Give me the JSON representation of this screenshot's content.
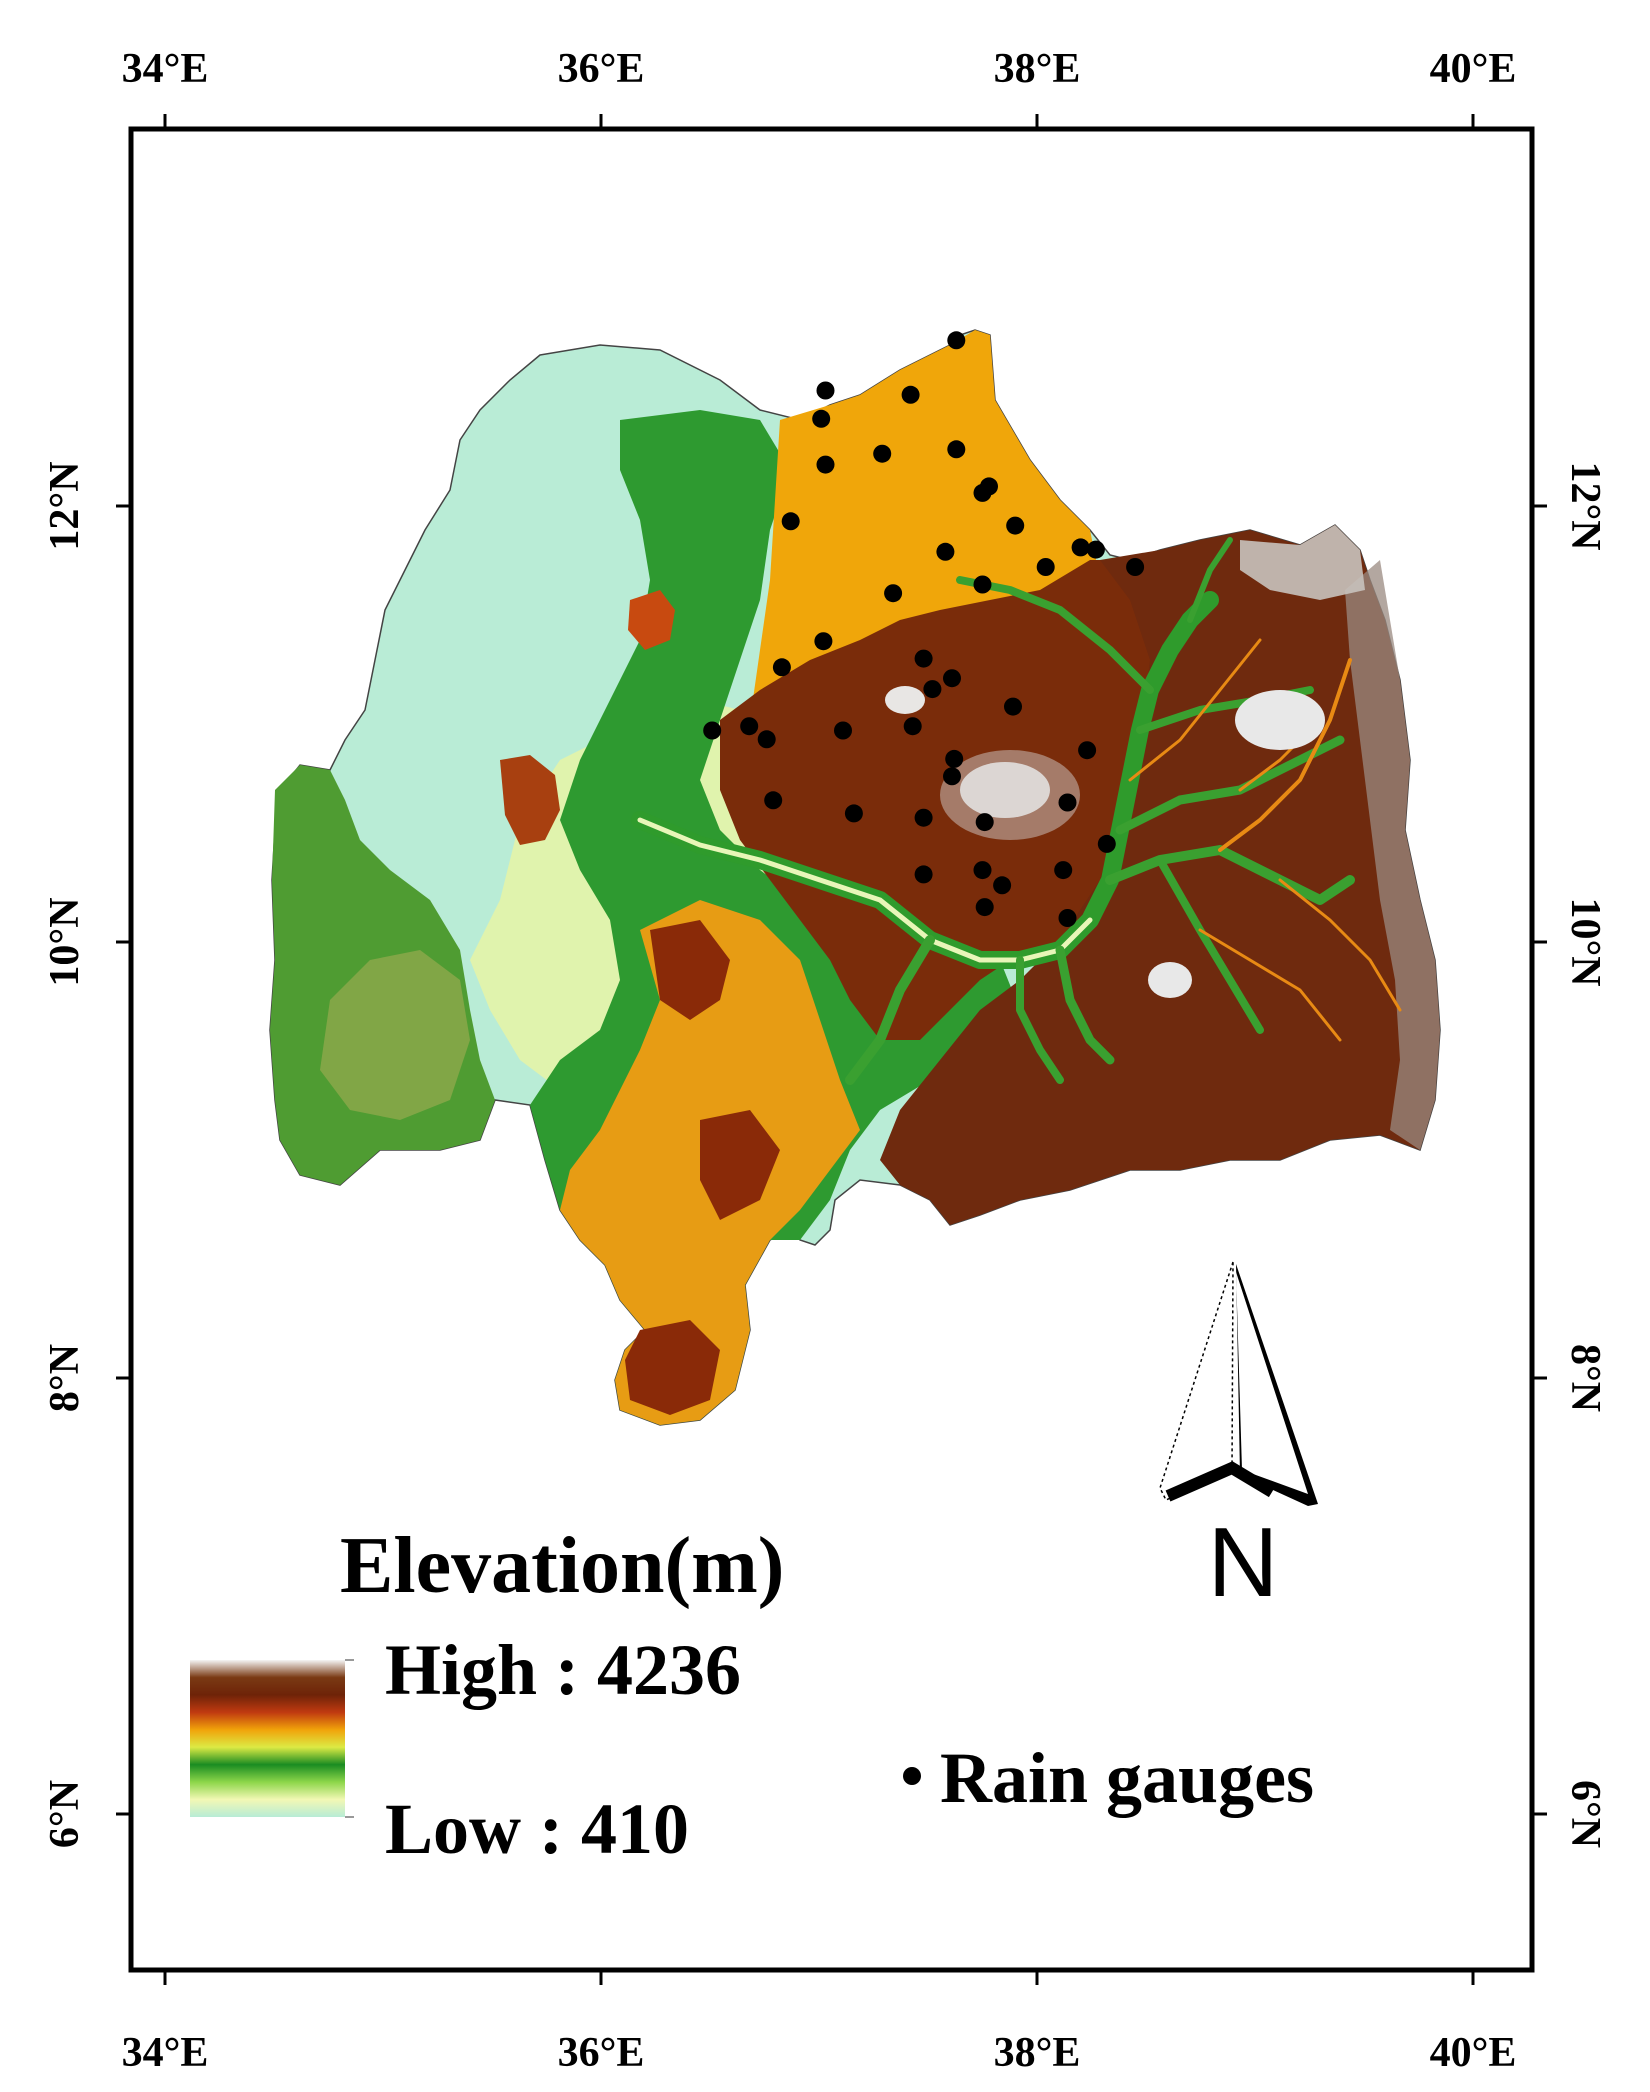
{
  "map": {
    "top_axis": [
      "34°E",
      "36°E",
      "38°E",
      "40°E"
    ],
    "bottom_axis": [
      "34°E",
      "36°E",
      "38°E",
      "40°E"
    ],
    "left_axis": [
      "12°N",
      "10°N",
      "8°N",
      "6°N"
    ],
    "right_axis": [
      "12°N",
      "10°N",
      "8°N",
      "6°N"
    ]
  },
  "legend": {
    "title": "Elevation(m)",
    "high_label": "High : 4236",
    "low_label": "Low : 410",
    "gauges_label": "Rain gauges",
    "elevation_ramp": [
      "#f4f4f4",
      "#7a3a14",
      "#6e2308",
      "#c03a10",
      "#f1a30a",
      "#dcea44",
      "#1a8c22",
      "#8dd64a",
      "#f2f8b4",
      "#b7ecd6"
    ]
  },
  "north_arrow": {
    "label": "N"
  },
  "colors": {
    "lowland_cyan": "#b7ecd6",
    "green": "#1f8d2a",
    "orange": "#f0a30a",
    "brown": "#6e2a0c",
    "summit_white": "#f1f1f1"
  },
  "rain_gauges": [
    {
      "lon": 37.63,
      "lat": 12.76
    },
    {
      "lon": 37.03,
      "lat": 12.53
    },
    {
      "lon": 37.42,
      "lat": 12.51
    },
    {
      "lon": 37.01,
      "lat": 12.4
    },
    {
      "lon": 37.29,
      "lat": 12.24
    },
    {
      "lon": 37.63,
      "lat": 12.26
    },
    {
      "lon": 37.03,
      "lat": 12.19
    },
    {
      "lon": 37.78,
      "lat": 12.09
    },
    {
      "lon": 37.75,
      "lat": 12.06
    },
    {
      "lon": 36.87,
      "lat": 11.93
    },
    {
      "lon": 37.9,
      "lat": 11.91
    },
    {
      "lon": 37.58,
      "lat": 11.79
    },
    {
      "lon": 38.2,
      "lat": 11.81
    },
    {
      "lon": 38.27,
      "lat": 11.8
    },
    {
      "lon": 38.04,
      "lat": 11.72
    },
    {
      "lon": 38.45,
      "lat": 11.72
    },
    {
      "lon": 37.75,
      "lat": 11.64
    },
    {
      "lon": 37.34,
      "lat": 11.6
    },
    {
      "lon": 37.02,
      "lat": 11.38
    },
    {
      "lon": 37.48,
      "lat": 11.3
    },
    {
      "lon": 36.83,
      "lat": 11.26
    },
    {
      "lon": 37.61,
      "lat": 11.21
    },
    {
      "lon": 37.52,
      "lat": 11.16
    },
    {
      "lon": 37.89,
      "lat": 11.08
    },
    {
      "lon": 36.51,
      "lat": 10.97
    },
    {
      "lon": 36.68,
      "lat": 10.99
    },
    {
      "lon": 37.11,
      "lat": 10.97
    },
    {
      "lon": 37.43,
      "lat": 10.99
    },
    {
      "lon": 36.76,
      "lat": 10.93
    },
    {
      "lon": 38.23,
      "lat": 10.88
    },
    {
      "lon": 37.62,
      "lat": 10.84
    },
    {
      "lon": 37.61,
      "lat": 10.76
    },
    {
      "lon": 36.79,
      "lat": 10.65
    },
    {
      "lon": 38.14,
      "lat": 10.64
    },
    {
      "lon": 37.16,
      "lat": 10.59
    },
    {
      "lon": 37.48,
      "lat": 10.57
    },
    {
      "lon": 37.76,
      "lat": 10.55
    },
    {
      "lon": 38.32,
      "lat": 10.45
    },
    {
      "lon": 37.75,
      "lat": 10.33
    },
    {
      "lon": 38.12,
      "lat": 10.33
    },
    {
      "lon": 37.48,
      "lat": 10.31
    },
    {
      "lon": 37.84,
      "lat": 10.26
    },
    {
      "lon": 37.76,
      "lat": 10.16
    },
    {
      "lon": 38.14,
      "lat": 10.11
    }
  ]
}
